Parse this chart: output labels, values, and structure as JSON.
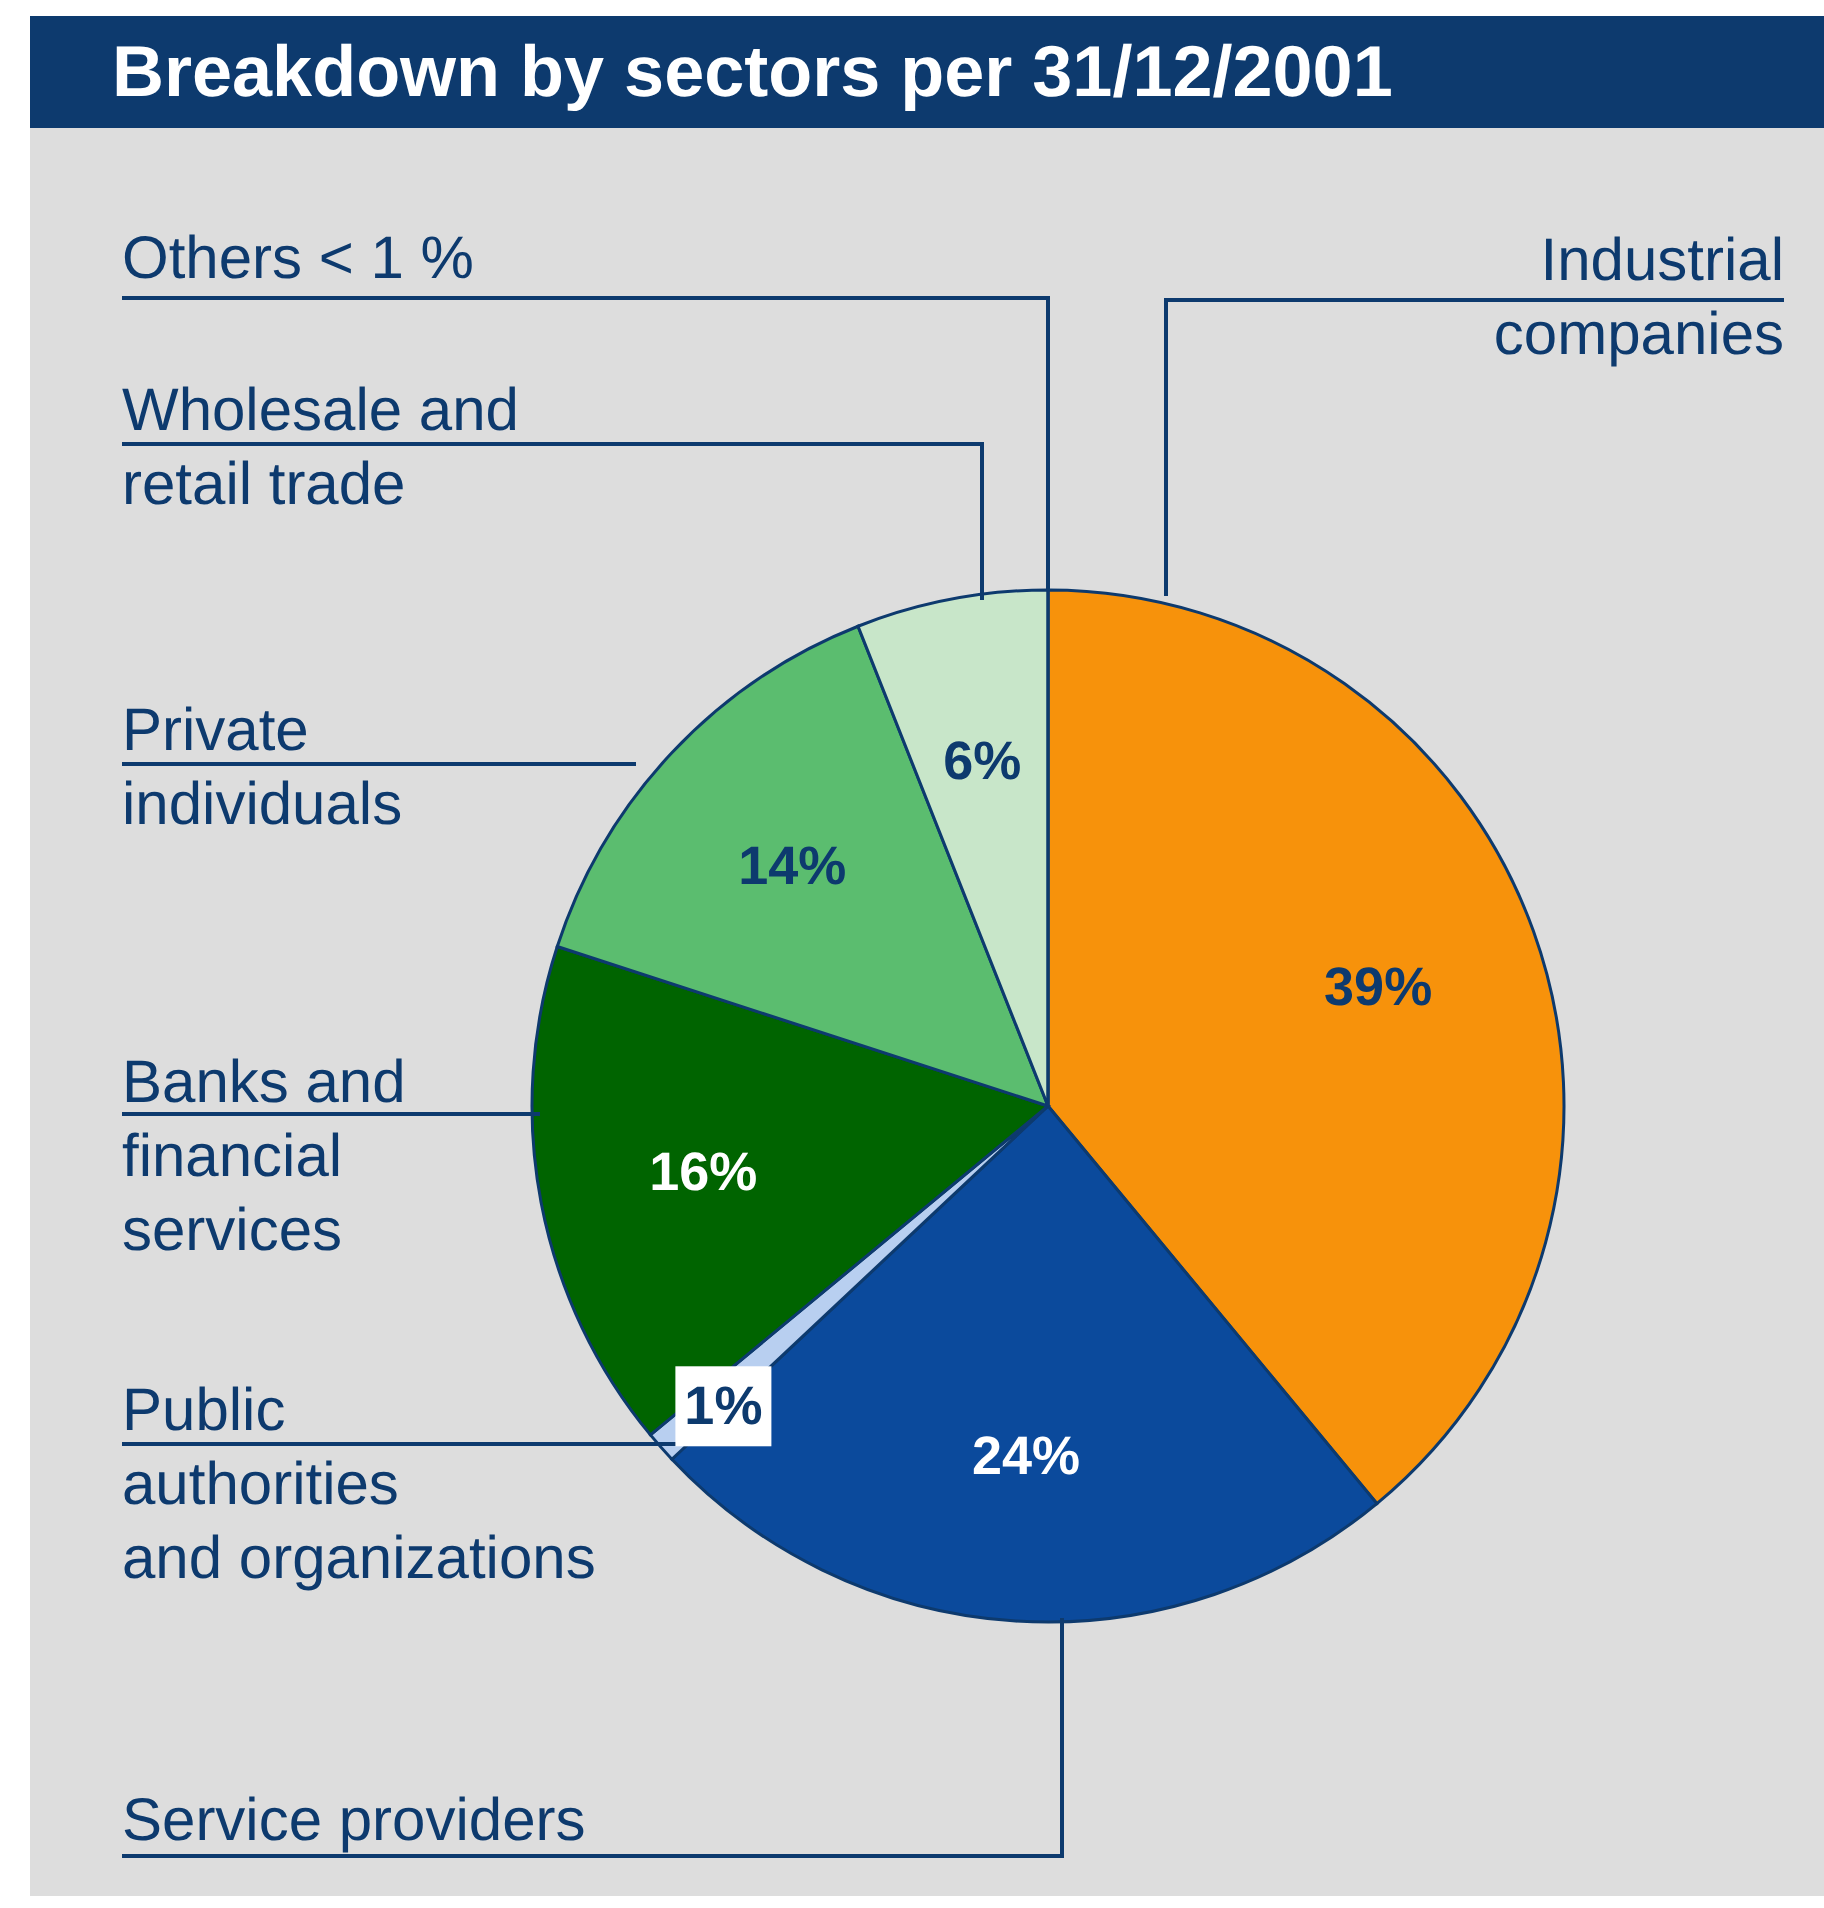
{
  "chart_data": {
    "type": "pie",
    "title": "Breakdown by sectors per 31/12/2001",
    "categories": [
      "Industrial companies",
      "Service providers",
      "Public authorities and organizations",
      "Banks and financial services",
      "Private individuals",
      "Wholesale and retail trade",
      "Others < 1 %"
    ],
    "values": [
      39,
      24,
      1,
      16,
      14,
      6,
      0
    ],
    "colors": [
      "#f7920b",
      "#0b4a9c",
      "#b8cff0",
      "#006400",
      "#5bbd6f",
      "#c8e6c9",
      "#e8f3e8"
    ],
    "value_labels": [
      "39%",
      "24%",
      "1%",
      "16%",
      "14%",
      "6%",
      null
    ]
  }
}
